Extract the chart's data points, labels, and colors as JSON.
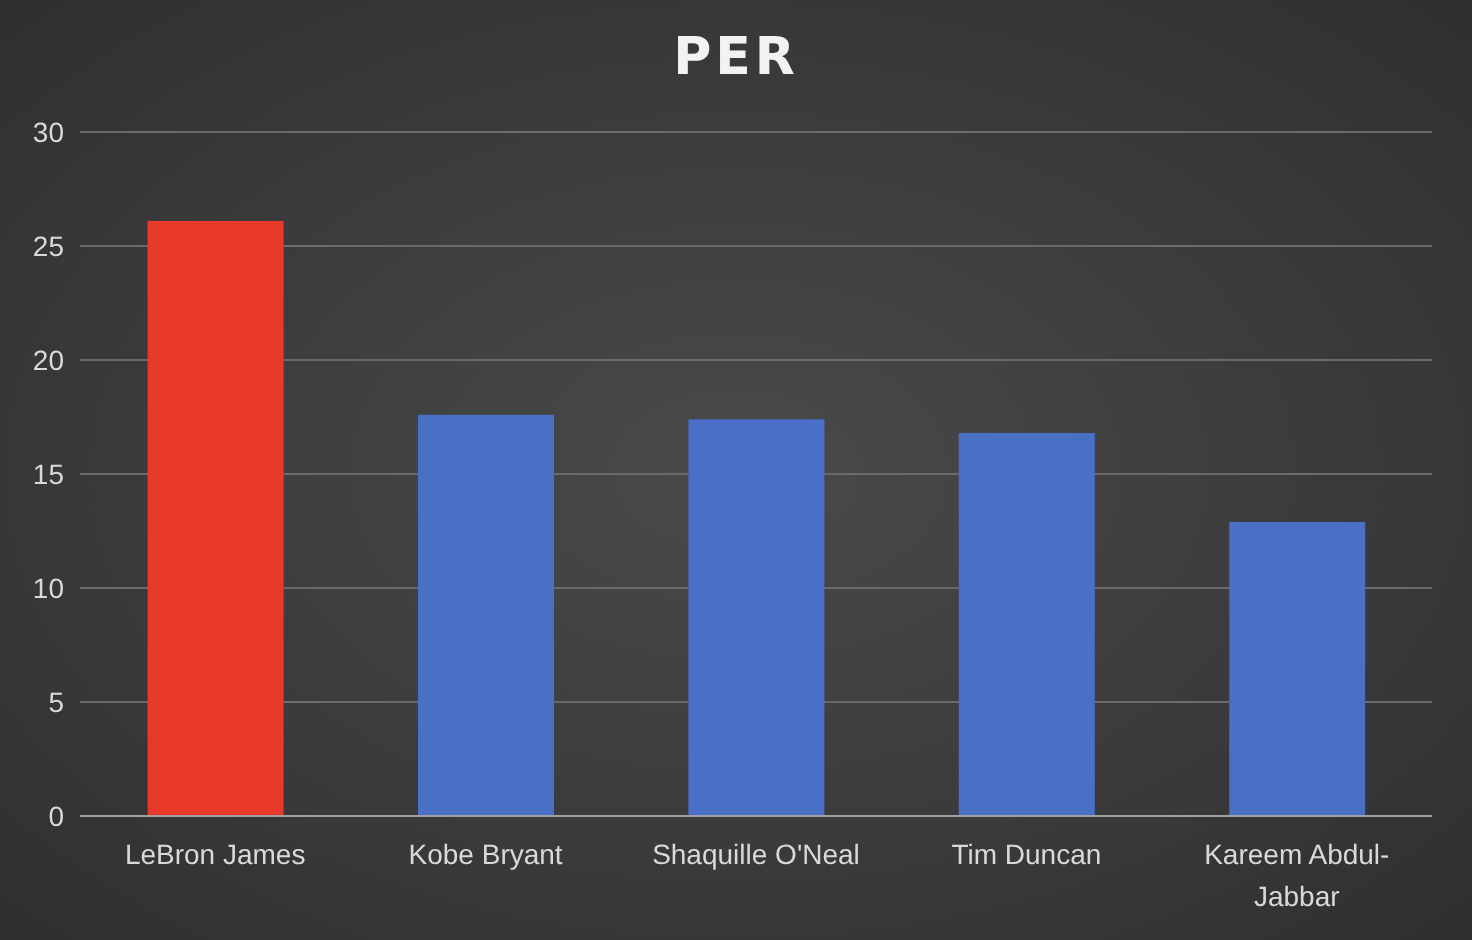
{
  "chart_data": {
    "type": "bar",
    "title": "PER",
    "categories": [
      "LeBron James",
      "Kobe Bryant",
      "Shaquille O'Neal",
      "Tim Duncan",
      "Kareem Abdul-Jabbar"
    ],
    "values": [
      26.1,
      17.6,
      17.4,
      16.8,
      12.9
    ],
    "colors": [
      "#e8392a",
      "#4a6fc7",
      "#4a6fc7",
      "#4a6fc7",
      "#4a6fc7"
    ],
    "ylim": [
      0,
      30
    ],
    "yticks": [
      0,
      5,
      10,
      15,
      20,
      25,
      30
    ],
    "grid": "y"
  }
}
